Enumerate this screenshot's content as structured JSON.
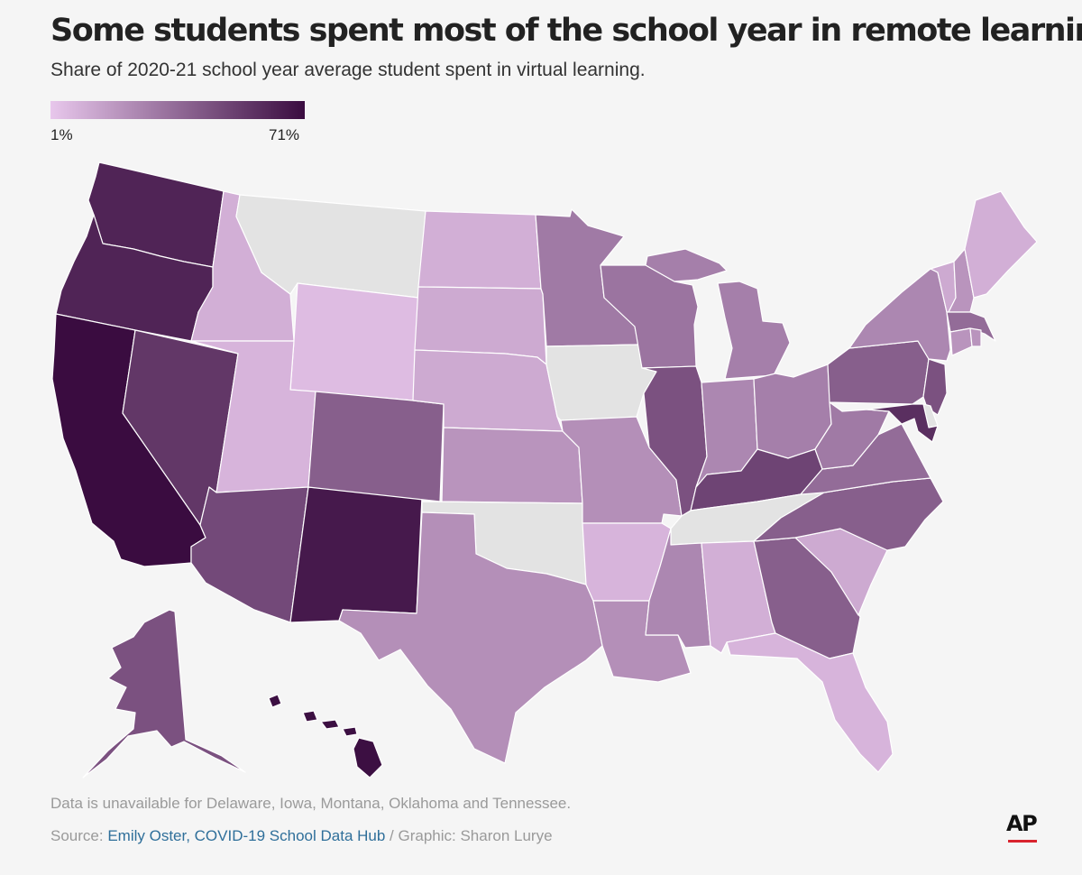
{
  "title": "Some students spent most of the school year in remote learning",
  "subtitle": "Share of 2020-21 school year average student spent in virtual learning.",
  "legend": {
    "min_label": "1%",
    "max_label": "71%",
    "min_value": 1,
    "max_value": 71,
    "color_low": "#e8c7ec",
    "color_high": "#3a0c40"
  },
  "no_data_color": "#e3e3e3",
  "note": "Data is unavailable for Delaware, Iowa, Montana, Oklahoma and Tennessee.",
  "source": {
    "prefix": "Source: ",
    "link_text": "Emily Oster, COVID-19 School Data Hub",
    "suffix": " / Graphic: Sharon Lurye"
  },
  "logo_text": "AP",
  "map_data": {
    "states": [
      {
        "id": "WA",
        "value": 62
      },
      {
        "id": "OR",
        "value": 62
      },
      {
        "id": "CA",
        "value": 71
      },
      {
        "id": "NV",
        "value": 55
      },
      {
        "id": "ID",
        "value": 10
      },
      {
        "id": "MT",
        "value": null
      },
      {
        "id": "WY",
        "value": 5
      },
      {
        "id": "UT",
        "value": 8
      },
      {
        "id": "AZ",
        "value": 48
      },
      {
        "id": "NM",
        "value": 66
      },
      {
        "id": "CO",
        "value": 40
      },
      {
        "id": "ND",
        "value": 10
      },
      {
        "id": "SD",
        "value": 12
      },
      {
        "id": "NE",
        "value": 12
      },
      {
        "id": "KS",
        "value": 20
      },
      {
        "id": "OK",
        "value": null
      },
      {
        "id": "TX",
        "value": 22
      },
      {
        "id": "MN",
        "value": 30
      },
      {
        "id": "IA",
        "value": null
      },
      {
        "id": "MO",
        "value": 22
      },
      {
        "id": "AR",
        "value": 8
      },
      {
        "id": "LA",
        "value": 22
      },
      {
        "id": "WI",
        "value": 32
      },
      {
        "id": "IL",
        "value": 45
      },
      {
        "id": "MI",
        "value": 28
      },
      {
        "id": "IN",
        "value": 25
      },
      {
        "id": "OH",
        "value": 28
      },
      {
        "id": "KY",
        "value": 50
      },
      {
        "id": "TN",
        "value": null
      },
      {
        "id": "MS",
        "value": 25
      },
      {
        "id": "AL",
        "value": 10
      },
      {
        "id": "GA",
        "value": 40
      },
      {
        "id": "FL",
        "value": 8
      },
      {
        "id": "SC",
        "value": 12
      },
      {
        "id": "NC",
        "value": 40
      },
      {
        "id": "VA",
        "value": 35
      },
      {
        "id": "WV",
        "value": 30
      },
      {
        "id": "PA",
        "value": 40
      },
      {
        "id": "NY",
        "value": 25
      },
      {
        "id": "VT",
        "value": 12
      },
      {
        "id": "NH",
        "value": 20
      },
      {
        "id": "ME",
        "value": 10
      },
      {
        "id": "MA",
        "value": 35
      },
      {
        "id": "CT",
        "value": 20
      },
      {
        "id": "RI",
        "value": 20
      },
      {
        "id": "NJ",
        "value": 45
      },
      {
        "id": "MD",
        "value": 58
      },
      {
        "id": "DE",
        "value": null
      },
      {
        "id": "AK",
        "value": 45
      },
      {
        "id": "HI",
        "value": 70
      }
    ]
  }
}
